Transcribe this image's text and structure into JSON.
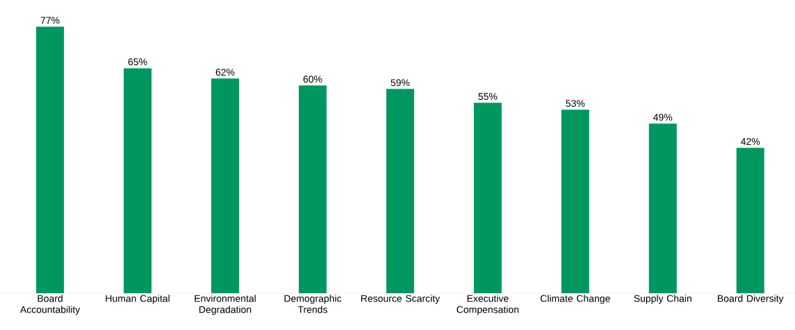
{
  "chart_data": {
    "type": "bar",
    "categories": [
      "Board Accountability",
      "Human Capital",
      "Environmental Degradation",
      "Demographic Trends",
      "Resource Scarcity",
      "Executive Compensation",
      "Climate Change",
      "Supply Chain",
      "Board Diversity"
    ],
    "values": [
      77,
      65,
      62,
      60,
      59,
      55,
      53,
      49,
      42
    ],
    "value_labels": [
      "77%",
      "65%",
      "62%",
      "60%",
      "59%",
      "55%",
      "53%",
      "49%",
      "42%"
    ],
    "color": "#00975f"
  }
}
